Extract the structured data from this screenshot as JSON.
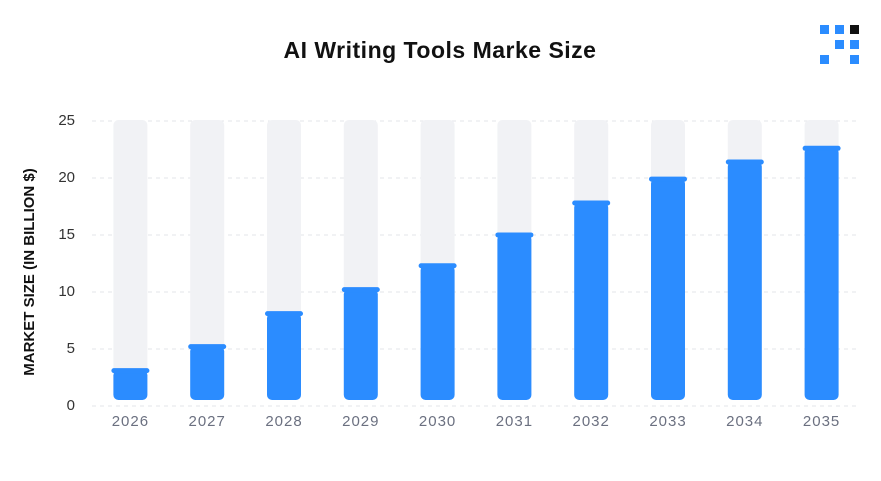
{
  "chart_data": {
    "type": "bar",
    "title": "AI Writing Tools Marke Size",
    "y_label": "MARKET SIZE (IN BILLION $)",
    "categories": [
      "2026",
      "2027",
      "2028",
      "2029",
      "2030",
      "2031",
      "2032",
      "2033",
      "2034",
      "2035"
    ],
    "values": [
      3.5,
      5.6,
      8.5,
      10.6,
      12.7,
      15.4,
      18.2,
      20.3,
      21.8,
      23.0
    ],
    "color": "#2b8cff",
    "background_color": "#f1f2f5",
    "ylim": [
      0,
      25
    ],
    "yticks": [
      0,
      5,
      10,
      15,
      20,
      25
    ],
    "grid": true
  }
}
